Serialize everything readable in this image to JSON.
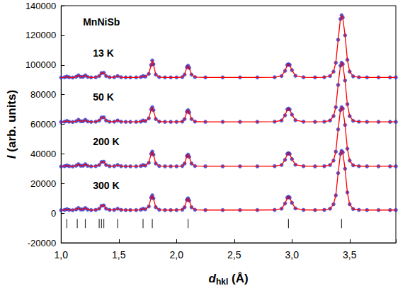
{
  "chart_data": {
    "type": "line",
    "title": "MnNiSb",
    "xlabel": "dhkl (Å)",
    "ylabel": "I (arb. units)",
    "xlim": [
      1.0,
      3.9
    ],
    "xticks": [
      {
        "value": 1.0,
        "label": "1,0"
      },
      {
        "value": 1.5,
        "label": "1,5"
      },
      {
        "value": 2.0,
        "label": "2,0"
      },
      {
        "value": 2.5,
        "label": "2,5"
      },
      {
        "value": 3.0,
        "label": "3,0"
      },
      {
        "value": 3.5,
        "label": "3,5"
      }
    ],
    "ylim": [
      -20000,
      140000
    ],
    "yticks": [
      -20000,
      0,
      20000,
      40000,
      60000,
      80000,
      100000,
      120000,
      140000
    ],
    "grid": false,
    "x": [
      1.0,
      1.03,
      1.05,
      1.07,
      1.1,
      1.13,
      1.15,
      1.17,
      1.19,
      1.21,
      1.23,
      1.26,
      1.3,
      1.33,
      1.35,
      1.37,
      1.39,
      1.42,
      1.46,
      1.49,
      1.52,
      1.56,
      1.6,
      1.65,
      1.69,
      1.71,
      1.73,
      1.76,
      1.78,
      1.79,
      1.8,
      1.82,
      1.85,
      1.9,
      1.95,
      2.0,
      2.05,
      2.07,
      2.09,
      2.1,
      2.11,
      2.13,
      2.16,
      2.25,
      2.4,
      2.55,
      2.7,
      2.85,
      2.91,
      2.94,
      2.96,
      2.97,
      2.98,
      3.0,
      3.03,
      3.1,
      3.2,
      3.28,
      3.33,
      3.36,
      3.38,
      3.4,
      3.42,
      3.43,
      3.44,
      3.46,
      3.48,
      3.5,
      3.53,
      3.58,
      3.65,
      3.75,
      3.85,
      3.9
    ],
    "series": [
      {
        "name": "13 K",
        "type": "scatter",
        "marker": "circle",
        "color": "#3030c8",
        "values": [
          91500,
          91700,
          92200,
          91700,
          91500,
          92000,
          93000,
          92000,
          92000,
          93000,
          91900,
          91600,
          91700,
          92500,
          94500,
          94700,
          92500,
          91700,
          91700,
          92500,
          91700,
          91600,
          91600,
          91600,
          91800,
          92500,
          92100,
          94000,
          100000,
          103000,
          100500,
          93500,
          91800,
          91600,
          91600,
          91600,
          91800,
          93500,
          98500,
          99500,
          98000,
          93500,
          91800,
          91600,
          91600,
          91600,
          91600,
          91700,
          92500,
          96000,
          100000,
          100500,
          100000,
          96500,
          92700,
          91700,
          91600,
          91700,
          92500,
          95500,
          101500,
          117000,
          131000,
          133500,
          132000,
          120000,
          103500,
          95500,
          92300,
          91700,
          91600,
          91600,
          91600,
          91600
        ]
      },
      {
        "type": "line",
        "line_style": "solid",
        "color": "#ff0000",
        "values": [
          91500,
          91700,
          92200,
          91700,
          91500,
          92000,
          93000,
          92000,
          92000,
          93000,
          91900,
          91600,
          91700,
          92500,
          94500,
          94700,
          92500,
          91700,
          91700,
          92500,
          91700,
          91600,
          91600,
          91600,
          91800,
          92500,
          92100,
          94000,
          100000,
          103000,
          100500,
          93500,
          91800,
          91600,
          91600,
          91600,
          91800,
          93500,
          98500,
          99500,
          98000,
          93500,
          91800,
          91600,
          91600,
          91600,
          91600,
          91700,
          92500,
          96000,
          100000,
          100500,
          100000,
          96500,
          92700,
          91700,
          91600,
          91700,
          92500,
          95500,
          101500,
          117000,
          131000,
          133500,
          132000,
          120000,
          103500,
          95500,
          92300,
          91700,
          91600,
          91600,
          91600,
          91600
        ]
      },
      {
        "name": "50 K",
        "type": "scatter",
        "marker": "circle",
        "color": "#3030c8",
        "values": [
          61500,
          61700,
          62200,
          61700,
          61500,
          62000,
          63000,
          62000,
          62000,
          63000,
          61900,
          61600,
          61700,
          62500,
          64500,
          64700,
          62500,
          61700,
          61700,
          62500,
          61700,
          61600,
          61600,
          61600,
          61800,
          62500,
          62100,
          64000,
          70000,
          71500,
          69500,
          63500,
          61800,
          61600,
          61600,
          61600,
          61800,
          63500,
          68500,
          69500,
          68000,
          63500,
          61800,
          61600,
          61600,
          61600,
          61600,
          61700,
          62500,
          66000,
          70000,
          70500,
          70000,
          66500,
          62700,
          61700,
          61600,
          61700,
          62500,
          65500,
          71500,
          86500,
          99500,
          101500,
          100500,
          89500,
          73500,
          65500,
          62300,
          61700,
          61600,
          61600,
          61600,
          61600
        ]
      },
      {
        "type": "line",
        "line_style": "solid",
        "color": "#ff0000",
        "values": [
          61500,
          61700,
          62200,
          61700,
          61500,
          62000,
          63000,
          62000,
          62000,
          63000,
          61900,
          61600,
          61700,
          62500,
          64500,
          64700,
          62500,
          61700,
          61700,
          62500,
          61700,
          61600,
          61600,
          61600,
          61800,
          62500,
          62100,
          64000,
          70000,
          71500,
          69500,
          63500,
          61800,
          61600,
          61600,
          61600,
          61800,
          63500,
          68500,
          69500,
          68000,
          63500,
          61800,
          61600,
          61600,
          61600,
          61600,
          61700,
          62500,
          66000,
          70000,
          70500,
          70000,
          66500,
          62700,
          61700,
          61600,
          61700,
          62500,
          65500,
          71500,
          86500,
          99500,
          101500,
          100500,
          89500,
          73500,
          65500,
          62300,
          61700,
          61600,
          61600,
          61600,
          61600
        ]
      },
      {
        "name": "200 K",
        "type": "scatter",
        "marker": "circle",
        "color": "#3030c8",
        "values": [
          31500,
          31700,
          32200,
          31700,
          31500,
          32000,
          33000,
          32000,
          32000,
          33000,
          31900,
          31600,
          31700,
          32500,
          34500,
          34700,
          32500,
          31700,
          31700,
          32500,
          31700,
          31600,
          31600,
          31600,
          31800,
          32500,
          32100,
          34000,
          40000,
          41500,
          39500,
          33500,
          31800,
          31600,
          31600,
          31600,
          31800,
          33500,
          38500,
          39500,
          38000,
          33500,
          31800,
          31600,
          31600,
          31600,
          31600,
          31700,
          32500,
          36000,
          40000,
          40500,
          40000,
          36500,
          32700,
          31700,
          31600,
          31700,
          32500,
          35500,
          41500,
          56500,
          69500,
          71500,
          70500,
          59500,
          43500,
          35500,
          32300,
          31700,
          31600,
          31600,
          31600,
          31600
        ]
      },
      {
        "type": "line",
        "line_style": "solid",
        "color": "#ff0000",
        "values": [
          31500,
          31700,
          32200,
          31700,
          31500,
          32000,
          33000,
          32000,
          32000,
          33000,
          31900,
          31600,
          31700,
          32500,
          34500,
          34700,
          32500,
          31700,
          31700,
          32500,
          31700,
          31600,
          31600,
          31600,
          31800,
          32500,
          32100,
          34000,
          40000,
          41500,
          39500,
          33500,
          31800,
          31600,
          31600,
          31600,
          31800,
          33500,
          38500,
          39500,
          38000,
          33500,
          31800,
          31600,
          31600,
          31600,
          31600,
          31700,
          32500,
          36000,
          40000,
          40500,
          40000,
          36500,
          32700,
          31700,
          31600,
          31700,
          32500,
          35500,
          41500,
          56500,
          69500,
          71500,
          70500,
          59500,
          43500,
          35500,
          32300,
          31700,
          31600,
          31600,
          31600,
          31600
        ]
      },
      {
        "name": "300 K",
        "type": "scatter",
        "marker": "circle",
        "color": "#3030c8",
        "values": [
          2000,
          2200,
          2700,
          2200,
          2000,
          2500,
          3500,
          2500,
          2500,
          3500,
          2400,
          2100,
          2200,
          3000,
          5000,
          5200,
          3000,
          2200,
          2200,
          3000,
          2200,
          2100,
          2100,
          2100,
          2300,
          3000,
          2600,
          4500,
          10500,
          12000,
          10000,
          4000,
          2300,
          2100,
          2100,
          2100,
          2300,
          4000,
          9000,
          10000,
          8500,
          4000,
          2300,
          2100,
          2100,
          2100,
          2100,
          2200,
          3000,
          6500,
          10500,
          11000,
          10500,
          7000,
          3200,
          2200,
          2100,
          2200,
          3000,
          6000,
          12000,
          27000,
          40000,
          42000,
          41000,
          30000,
          14000,
          6000,
          2800,
          2200,
          2100,
          2100,
          2100,
          2100
        ]
      },
      {
        "type": "line",
        "line_style": "solid",
        "color": "#ff0000",
        "values": [
          2000,
          2200,
          2700,
          2200,
          2000,
          2500,
          3500,
          2500,
          2500,
          3500,
          2400,
          2100,
          2200,
          3000,
          5000,
          5200,
          3000,
          2200,
          2200,
          3000,
          2200,
          2100,
          2100,
          2100,
          2300,
          3000,
          2600,
          4500,
          10500,
          12000,
          10000,
          4000,
          2300,
          2100,
          2100,
          2100,
          2300,
          4000,
          9000,
          10000,
          8500,
          4000,
          2300,
          2100,
          2100,
          2100,
          2100,
          2200,
          3000,
          6500,
          10500,
          11000,
          10500,
          7000,
          3200,
          2200,
          2100,
          2200,
          3000,
          6000,
          12000,
          27000,
          40000,
          42000,
          41000,
          30000,
          14000,
          6000,
          2800,
          2200,
          2100,
          2100,
          2100,
          2100
        ]
      },
      {
        "type": "bragg",
        "marker": "vline",
        "color": "#000000",
        "x": [
          1.05,
          1.14,
          1.21,
          1.33,
          1.35,
          1.37,
          1.49,
          1.71,
          1.79,
          2.1,
          2.97,
          3.43
        ],
        "values": [
          -7000,
          -7000,
          -7000,
          -7000,
          -7000,
          -7000,
          -7000,
          -7000,
          -7000,
          -7000,
          -7000,
          -7000
        ]
      }
    ]
  }
}
